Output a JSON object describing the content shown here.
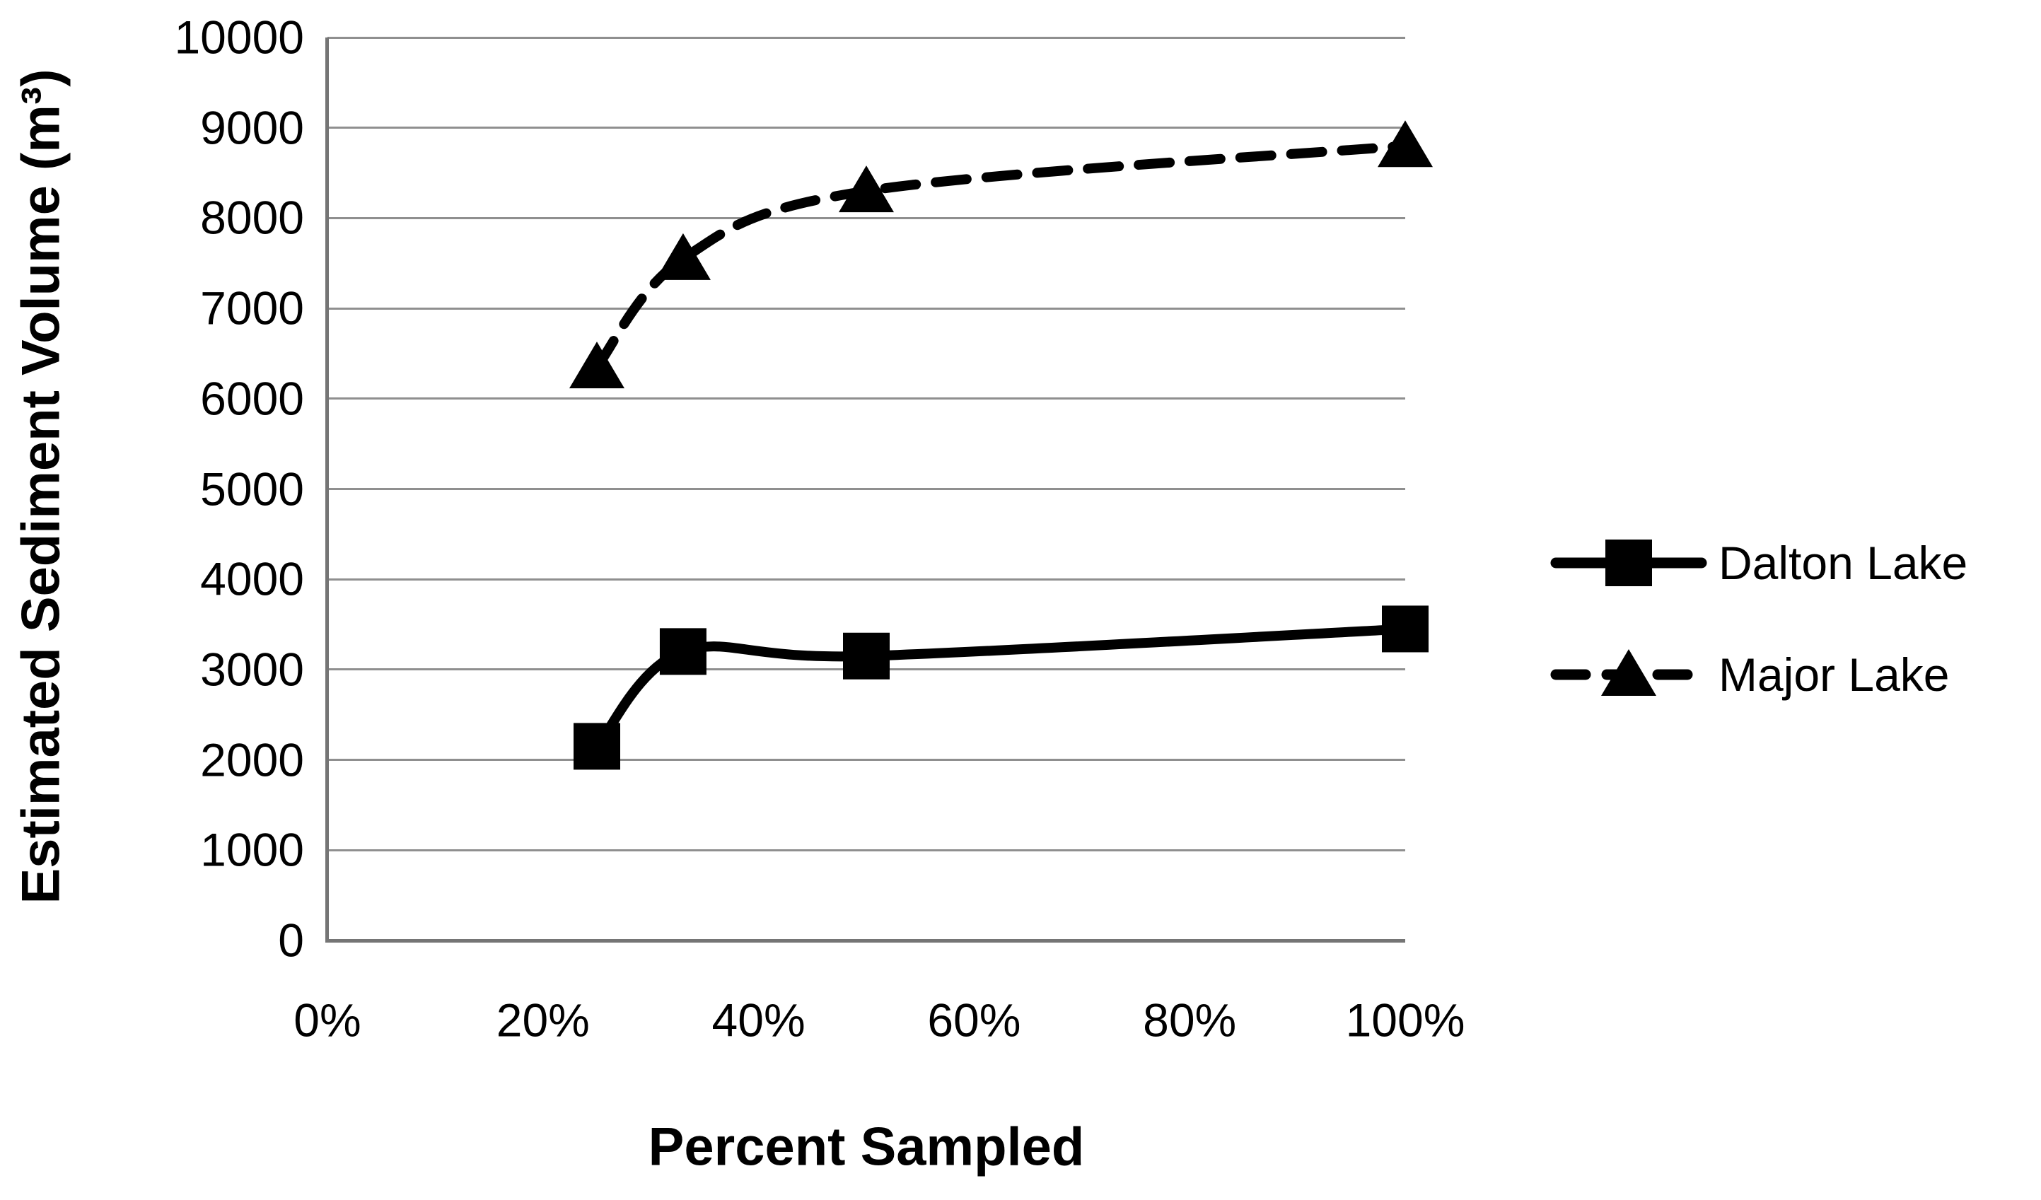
{
  "chart_data": {
    "type": "line",
    "title": "",
    "xlabel": "Percent Sampled",
    "ylabel": "Estimated Sediment Volume (m³)",
    "x_percent": [
      25,
      33,
      50,
      100
    ],
    "series": [
      {
        "name": "Dalton Lake",
        "values": [
          2150,
          3200,
          3150,
          3450
        ],
        "line_style": "solid",
        "marker": "square",
        "color": "#000000"
      },
      {
        "name": "Major Lake",
        "values": [
          6350,
          7550,
          8300,
          8800
        ],
        "line_style": "dashed",
        "marker": "triangle",
        "color": "#000000"
      }
    ],
    "xlim": [
      0,
      100
    ],
    "ylim": [
      0,
      10000
    ],
    "x_tick_values": [
      0,
      20,
      40,
      60,
      80,
      100
    ],
    "x_tick_labels": [
      "0%",
      "20%",
      "40%",
      "60%",
      "80%",
      "100%"
    ],
    "y_tick_values": [
      0,
      1000,
      2000,
      3000,
      4000,
      5000,
      6000,
      7000,
      8000,
      9000,
      10000
    ],
    "y_tick_labels": [
      "0",
      "1000",
      "2000",
      "3000",
      "4000",
      "5000",
      "6000",
      "7000",
      "8000",
      "9000",
      "10000"
    ],
    "grid": "horizontal-only",
    "legend_position": "right",
    "colors": {
      "background": "#ffffff",
      "series": "#000000",
      "gridline": "#8f8f8f",
      "axis_line": "#757575",
      "text": "#000000"
    }
  }
}
